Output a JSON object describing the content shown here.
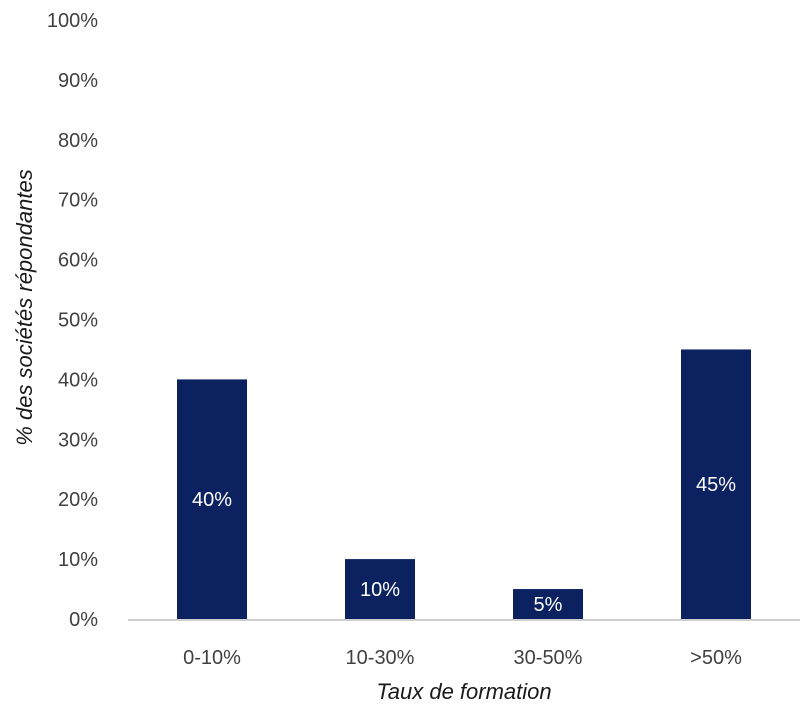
{
  "colors": {
    "bar": "#0b2160",
    "axis_line": "#bfbfbf",
    "text": "#404040",
    "title": "#1a1a1a",
    "bar_label": "#ffffff"
  },
  "chart_data": {
    "type": "bar",
    "title": "",
    "xlabel": "Taux de formation",
    "ylabel": "% des sociétés répondantes",
    "categories": [
      "0-10%",
      "10-30%",
      "30-50%",
      ">50%"
    ],
    "values": [
      40,
      10,
      5,
      45
    ],
    "value_labels": [
      "40%",
      "10%",
      "5%",
      "45%"
    ],
    "ylim": [
      0,
      100
    ],
    "yticks": [
      0,
      10,
      20,
      30,
      40,
      50,
      60,
      70,
      80,
      90,
      100
    ],
    "ytick_labels": [
      "0%",
      "10%",
      "20%",
      "30%",
      "40%",
      "50%",
      "60%",
      "70%",
      "80%",
      "90%",
      "100%"
    ],
    "grid": false,
    "legend": "none"
  }
}
